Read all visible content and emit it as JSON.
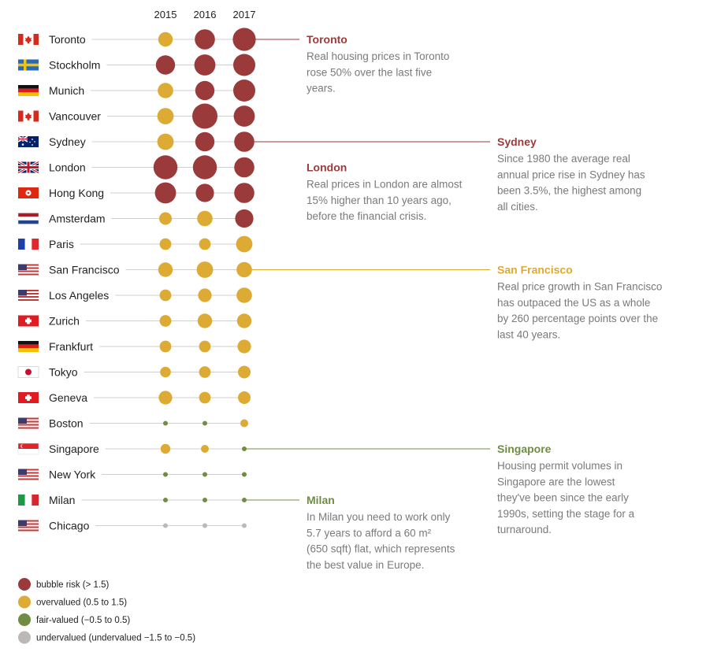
{
  "chart_data": {
    "type": "scatter",
    "x": [
      "2015",
      "2016",
      "2017"
    ],
    "colors": {
      "bubble": "#9b3a3a",
      "overvalued": "#ddaa33",
      "fair": "#718c45",
      "undervalued": "#bdb8b3",
      "guide": "#cfcfcf"
    },
    "legend": [
      {
        "key": "bubble",
        "label": "bubble risk  (> 1.5)"
      },
      {
        "key": "overvalued",
        "label": "overvalued (0.5 to 1.5)"
      },
      {
        "key": "fair",
        "label": "fair-valued (−0.5 to 0.5)"
      },
      {
        "key": "undervalued",
        "label": "undervalued (undervalued −1.5 to −0.5)"
      }
    ],
    "rows": [
      {
        "city": "Toronto",
        "flag": "canada-flag-icon",
        "values": [
          1.2,
          1.8,
          2.1
        ]
      },
      {
        "city": "Stockholm",
        "flag": "sweden-flag-icon",
        "values": [
          1.7,
          1.9,
          2.0
        ]
      },
      {
        "city": "Munich",
        "flag": "germany-flag-icon",
        "values": [
          1.3,
          1.7,
          2.0
        ]
      },
      {
        "city": "Vancouver",
        "flag": "canada-flag-icon",
        "values": [
          1.4,
          2.4,
          1.9
        ]
      },
      {
        "city": "Sydney",
        "flag": "australia-flag-icon",
        "values": [
          1.4,
          1.7,
          1.8
        ]
      },
      {
        "city": "London",
        "flag": "uk-flag-icon",
        "values": [
          2.2,
          2.2,
          1.8
        ]
      },
      {
        "city": "Hong Kong",
        "flag": "hong-kong-flag-icon",
        "values": [
          1.9,
          1.6,
          1.8
        ]
      },
      {
        "city": "Amsterdam",
        "flag": "netherlands-flag-icon",
        "values": [
          1.0,
          1.3,
          1.6
        ]
      },
      {
        "city": "Paris",
        "flag": "france-flag-icon",
        "values": [
          0.9,
          0.9,
          1.4
        ]
      },
      {
        "city": "San Francisco",
        "flag": "usa-flag-icon",
        "values": [
          1.2,
          1.4,
          1.3
        ]
      },
      {
        "city": "Los Angeles",
        "flag": "usa-flag-icon",
        "values": [
          0.9,
          1.1,
          1.3
        ]
      },
      {
        "city": "Zurich",
        "flag": "switzerland-flag-icon",
        "values": [
          0.9,
          1.2,
          1.2
        ]
      },
      {
        "city": "Frankfurt",
        "flag": "germany-flag-icon",
        "values": [
          0.9,
          0.9,
          1.1
        ]
      },
      {
        "city": "Tokyo",
        "flag": "japan-flag-icon",
        "values": [
          0.8,
          0.9,
          1.0
        ]
      },
      {
        "city": "Geneva",
        "flag": "switzerland-flag-icon",
        "values": [
          1.1,
          0.9,
          1.0
        ]
      },
      {
        "city": "Boston",
        "flag": "usa-flag-icon",
        "values": [
          0.3,
          0.4,
          0.5
        ]
      },
      {
        "city": "Singapore",
        "flag": "singapore-flag-icon",
        "values": [
          0.7,
          0.5,
          0.4
        ]
      },
      {
        "city": "New York",
        "flag": "usa-flag-icon",
        "values": [
          0.3,
          0.3,
          0.3
        ]
      },
      {
        "city": "Milan",
        "flag": "italy-flag-icon",
        "values": [
          0.2,
          0.2,
          0.2
        ]
      },
      {
        "city": "Chicago",
        "flag": "usa-flag-icon",
        "values": [
          -0.6,
          -0.6,
          -0.6
        ]
      }
    ],
    "annotations": [
      {
        "city": "Toronto",
        "title": "Toronto",
        "color": "#9b3a3a",
        "lines": [
          "Real housing prices in Toronto",
          "rose 50% over the last five",
          "years."
        ]
      },
      {
        "city": "London",
        "title": "London",
        "color": "#9b3a3a",
        "lines": [
          "Real prices in London are almost",
          "15% higher than 10 years ago,",
          "before the financial crisis."
        ]
      },
      {
        "city": "Sydney",
        "title": "Sydney",
        "color": "#9b3a3a",
        "lines": [
          "Since 1980 the average real",
          "annual price rise in Sydney has",
          "been 3.5%, the highest among",
          "all cities."
        ]
      },
      {
        "city": "San Francisco",
        "title": "San Francisco",
        "color": "#ddaa33",
        "lines": [
          "Real price growth in San Francisco",
          "has outpaced the US as a whole",
          "by 260 percentage points over the",
          "last 40 years."
        ]
      },
      {
        "city": "Singapore",
        "title": "Singapore",
        "color": "#718c45",
        "lines": [
          "Housing permit volumes in",
          "Singapore are the lowest",
          "they've been since the early",
          "1990s, setting the stage for a",
          "turnaround."
        ]
      },
      {
        "city": "Milan",
        "title": "Milan",
        "color": "#718c45",
        "lines": [
          "In Milan you need to work only",
          "5.7 years to afford a 60 m²",
          "(650 sqft) flat, which represents",
          "the best value in Europe."
        ]
      }
    ]
  }
}
